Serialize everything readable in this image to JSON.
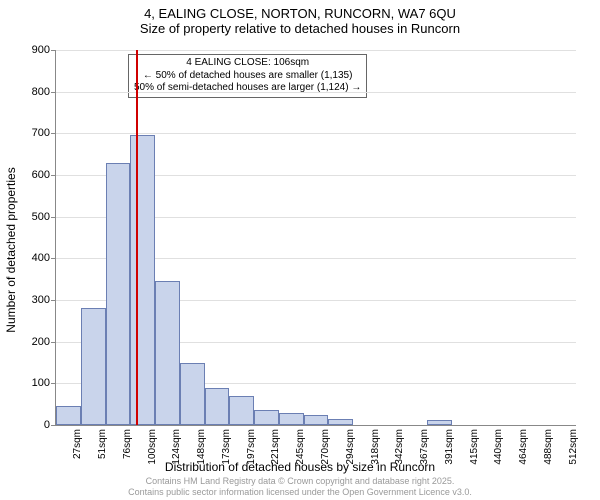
{
  "title": "4, EALING CLOSE, NORTON, RUNCORN, WA7 6QU",
  "subtitle": "Size of property relative to detached houses in Runcorn",
  "chart": {
    "type": "histogram",
    "ylabel": "Number of detached properties",
    "xlabel": "Distribution of detached houses by size in Runcorn",
    "ylim": [
      0,
      900
    ],
    "ytick_step": 100,
    "bar_fill": "#c9d4eb",
    "bar_stroke": "#6b7fb3",
    "background_color": "#ffffff",
    "grid_color": "#e0e0e0",
    "vline_color": "#d00000",
    "vline_x_index": 3.25,
    "categories": [
      "27sqm",
      "51sqm",
      "76sqm",
      "100sqm",
      "124sqm",
      "148sqm",
      "173sqm",
      "197sqm",
      "221sqm",
      "245sqm",
      "270sqm",
      "294sqm",
      "318sqm",
      "342sqm",
      "367sqm",
      "391sqm",
      "415sqm",
      "440sqm",
      "464sqm",
      "488sqm",
      "512sqm"
    ],
    "values": [
      45,
      280,
      630,
      695,
      345,
      150,
      90,
      70,
      35,
      30,
      25,
      15,
      0,
      0,
      0,
      12,
      0,
      0,
      0,
      0,
      0
    ],
    "annotation": {
      "line1": "4 EALING CLOSE: 106sqm",
      "line2": "← 50% of detached houses are smaller (1,135)",
      "line3": "50% of semi-detached houses are larger (1,124) →"
    }
  },
  "footer": {
    "line1": "Contains HM Land Registry data © Crown copyright and database right 2025.",
    "line2": "Contains public sector information licensed under the Open Government Licence v3.0."
  }
}
